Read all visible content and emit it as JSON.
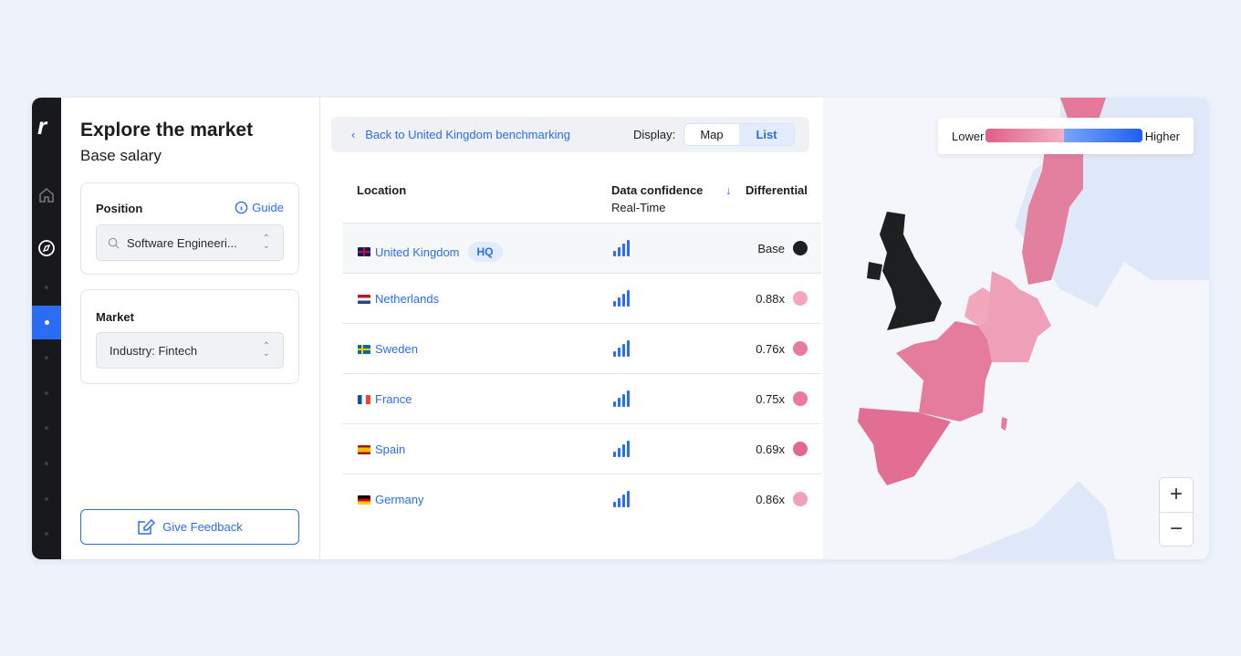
{
  "sidebar": {
    "logo": "r",
    "items": [
      "home-icon",
      "explore-icon"
    ]
  },
  "left": {
    "title": "Explore the market",
    "subtitle": "Base salary",
    "position": {
      "label": "Position",
      "guide": "Guide",
      "value": "Software Engineeri..."
    },
    "market": {
      "label": "Market",
      "value": "Industry: Fintech"
    },
    "feedback": "Give Feedback"
  },
  "topbar": {
    "back": "Back to United Kingdom benchmarking",
    "display_label": "Display:",
    "options": [
      "Map",
      "List"
    ],
    "selected": "List"
  },
  "table": {
    "headers": {
      "location": "Location",
      "confidence": "Data confidence",
      "confidence_sub": "Real-Time",
      "differential": "Differential"
    },
    "rows": [
      {
        "location": "United Kingdom",
        "badge": "HQ",
        "value": "Base",
        "color": "#1e1f21"
      },
      {
        "location": "Netherlands",
        "value": "0.88x",
        "color": "#f2a7bd"
      },
      {
        "location": "Sweden",
        "value": "0.76x",
        "color": "#e97c9d"
      },
      {
        "location": "France",
        "value": "0.75x",
        "color": "#e97a9b"
      },
      {
        "location": "Spain",
        "value": "0.69x",
        "color": "#e4688d"
      },
      {
        "location": "Germany",
        "value": "0.86x",
        "color": "#f0a2b9"
      }
    ]
  },
  "map": {
    "legend_low": "Lower",
    "legend_high": "Higher",
    "zoom_in": "+",
    "zoom_out": "−"
  }
}
